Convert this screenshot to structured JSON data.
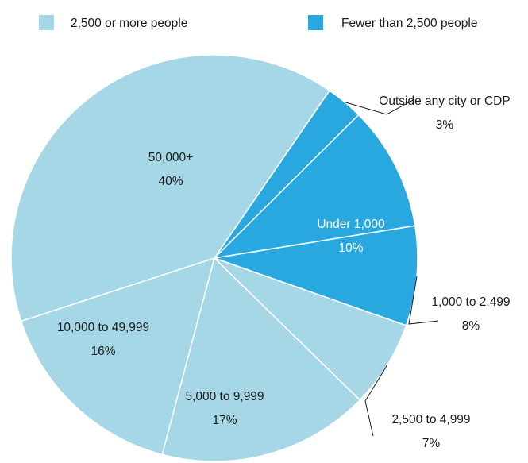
{
  "chart_data": {
    "type": "pie",
    "legend": [
      {
        "name": "2,500 or more people",
        "color": "#A6D7E6"
      },
      {
        "name": "Fewer than 2,500 people",
        "color": "#29A8E0"
      }
    ],
    "slices": [
      {
        "label": "Outside any city or CDP",
        "value_label": "3%",
        "value": 3,
        "group": 1
      },
      {
        "label": "Under 1,000",
        "value_label": "10%",
        "value": 10,
        "group": 1
      },
      {
        "label": "1,000 to 2,499",
        "value_label": "8%",
        "value": 8,
        "group": 1
      },
      {
        "label": "2,500 to 4,999",
        "value_label": "7%",
        "value": 7,
        "group": 0
      },
      {
        "label": "5,000 to 9,999",
        "value_label": "17%",
        "value": 17,
        "group": 0
      },
      {
        "label": "10,000 to 49,999",
        "value_label": "16%",
        "value": 16,
        "group": 0
      },
      {
        "label": "50,000+",
        "value_label": "40%",
        "value": 40,
        "group": 0
      }
    ],
    "legend_position": "top"
  }
}
